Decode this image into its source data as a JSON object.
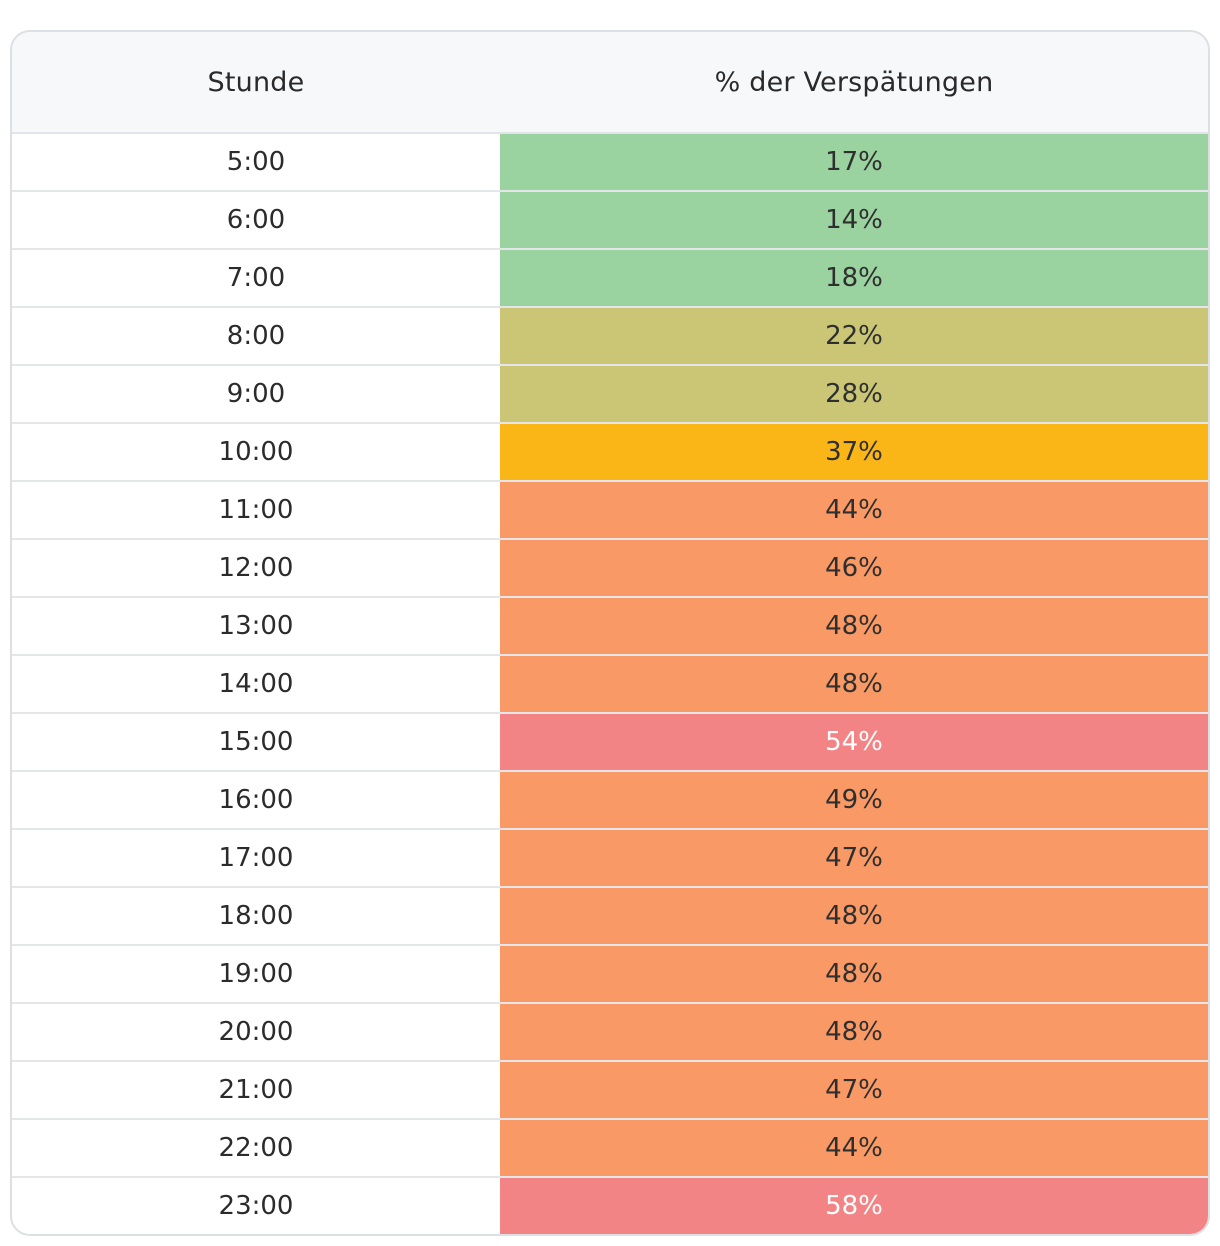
{
  "table": {
    "headers": {
      "hour": "Stunde",
      "percent": "% der Verspätungen"
    },
    "rows": [
      {
        "hour": "5:00",
        "percent": "17%",
        "value": 17,
        "color": "#9ad2a0",
        "text_color": "#2f2f2f"
      },
      {
        "hour": "6:00",
        "percent": "14%",
        "value": 14,
        "color": "#9ad2a0",
        "text_color": "#2f2f2f"
      },
      {
        "hour": "7:00",
        "percent": "18%",
        "value": 18,
        "color": "#9ad2a0",
        "text_color": "#2f2f2f"
      },
      {
        "hour": "8:00",
        "percent": "22%",
        "value": 22,
        "color": "#cac676",
        "text_color": "#2f2f2f"
      },
      {
        "hour": "9:00",
        "percent": "28%",
        "value": 28,
        "color": "#cac676",
        "text_color": "#2f2f2f"
      },
      {
        "hour": "10:00",
        "percent": "37%",
        "value": 37,
        "color": "#fab517",
        "text_color": "#2f2f2f"
      },
      {
        "hour": "11:00",
        "percent": "44%",
        "value": 44,
        "color": "#f99965",
        "text_color": "#2f2f2f"
      },
      {
        "hour": "12:00",
        "percent": "46%",
        "value": 46,
        "color": "#f99965",
        "text_color": "#2f2f2f"
      },
      {
        "hour": "13:00",
        "percent": "48%",
        "value": 48,
        "color": "#f99965",
        "text_color": "#2f2f2f"
      },
      {
        "hour": "14:00",
        "percent": "48%",
        "value": 48,
        "color": "#f99965",
        "text_color": "#2f2f2f"
      },
      {
        "hour": "15:00",
        "percent": "54%",
        "value": 54,
        "color": "#f38486",
        "text_color": "#ffffff"
      },
      {
        "hour": "16:00",
        "percent": "49%",
        "value": 49,
        "color": "#f99965",
        "text_color": "#2f2f2f"
      },
      {
        "hour": "17:00",
        "percent": "47%",
        "value": 47,
        "color": "#f99965",
        "text_color": "#2f2f2f"
      },
      {
        "hour": "18:00",
        "percent": "48%",
        "value": 48,
        "color": "#f99965",
        "text_color": "#2f2f2f"
      },
      {
        "hour": "19:00",
        "percent": "48%",
        "value": 48,
        "color": "#f99965",
        "text_color": "#2f2f2f"
      },
      {
        "hour": "20:00",
        "percent": "48%",
        "value": 48,
        "color": "#f99965",
        "text_color": "#2f2f2f"
      },
      {
        "hour": "21:00",
        "percent": "47%",
        "value": 47,
        "color": "#f99965",
        "text_color": "#2f2f2f"
      },
      {
        "hour": "22:00",
        "percent": "44%",
        "value": 44,
        "color": "#f99965",
        "text_color": "#2f2f2f"
      },
      {
        "hour": "23:00",
        "percent": "58%",
        "value": 58,
        "color": "#f38486",
        "text_color": "#ffffff"
      }
    ]
  }
}
